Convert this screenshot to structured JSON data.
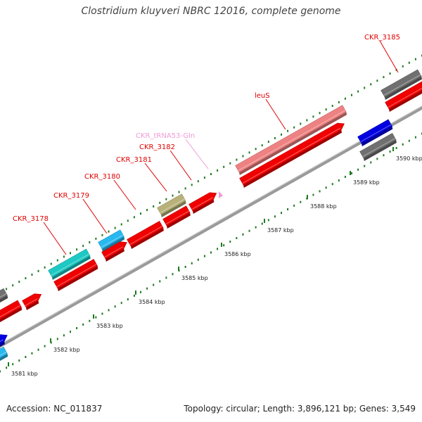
{
  "title": "Clostridium kluyveri NBRC 12016, complete genome",
  "footer": {
    "accession": "Accession: NC_011837",
    "info": "Topology: circular; Length: 3,896,121 bp; Genes: 3,549"
  },
  "colors": {
    "red": "#f00000",
    "gray": "#707070",
    "cyan": "#1ec9c4",
    "sky": "#29b8ef",
    "olive": "#b8b27a",
    "pink": "#ee8282",
    "blue": "#0000e0",
    "trna": "#f29ad6",
    "backbone": "#9a9a9a",
    "tick": "#1e7a1e"
  },
  "kbp_ticks": [
    {
      "label": "3581 kbp"
    },
    {
      "label": "3582 kbp"
    },
    {
      "label": "3583 kbp"
    },
    {
      "label": "3584 kbp"
    },
    {
      "label": "3585 kbp"
    },
    {
      "label": "3586 kbp"
    },
    {
      "label": "3587 kbp"
    },
    {
      "label": "3588 kbp"
    },
    {
      "label": "3589 kbp"
    },
    {
      "label": "3590 kbp"
    }
  ],
  "gene_labels": [
    {
      "name": "CKR_3178",
      "color": "#e00000"
    },
    {
      "name": "CKR_3179",
      "color": "#e00000"
    },
    {
      "name": "CKR_3180",
      "color": "#e00000"
    },
    {
      "name": "CKR_3181",
      "color": "#e00000"
    },
    {
      "name": "CKR_3182",
      "color": "#e00000"
    },
    {
      "name": "CKR_tRNA53-Gln",
      "color": "#f29ad6"
    },
    {
      "name": "leuS",
      "color": "#e00000"
    },
    {
      "name": "CKR_3185",
      "color": "#e00000"
    }
  ]
}
